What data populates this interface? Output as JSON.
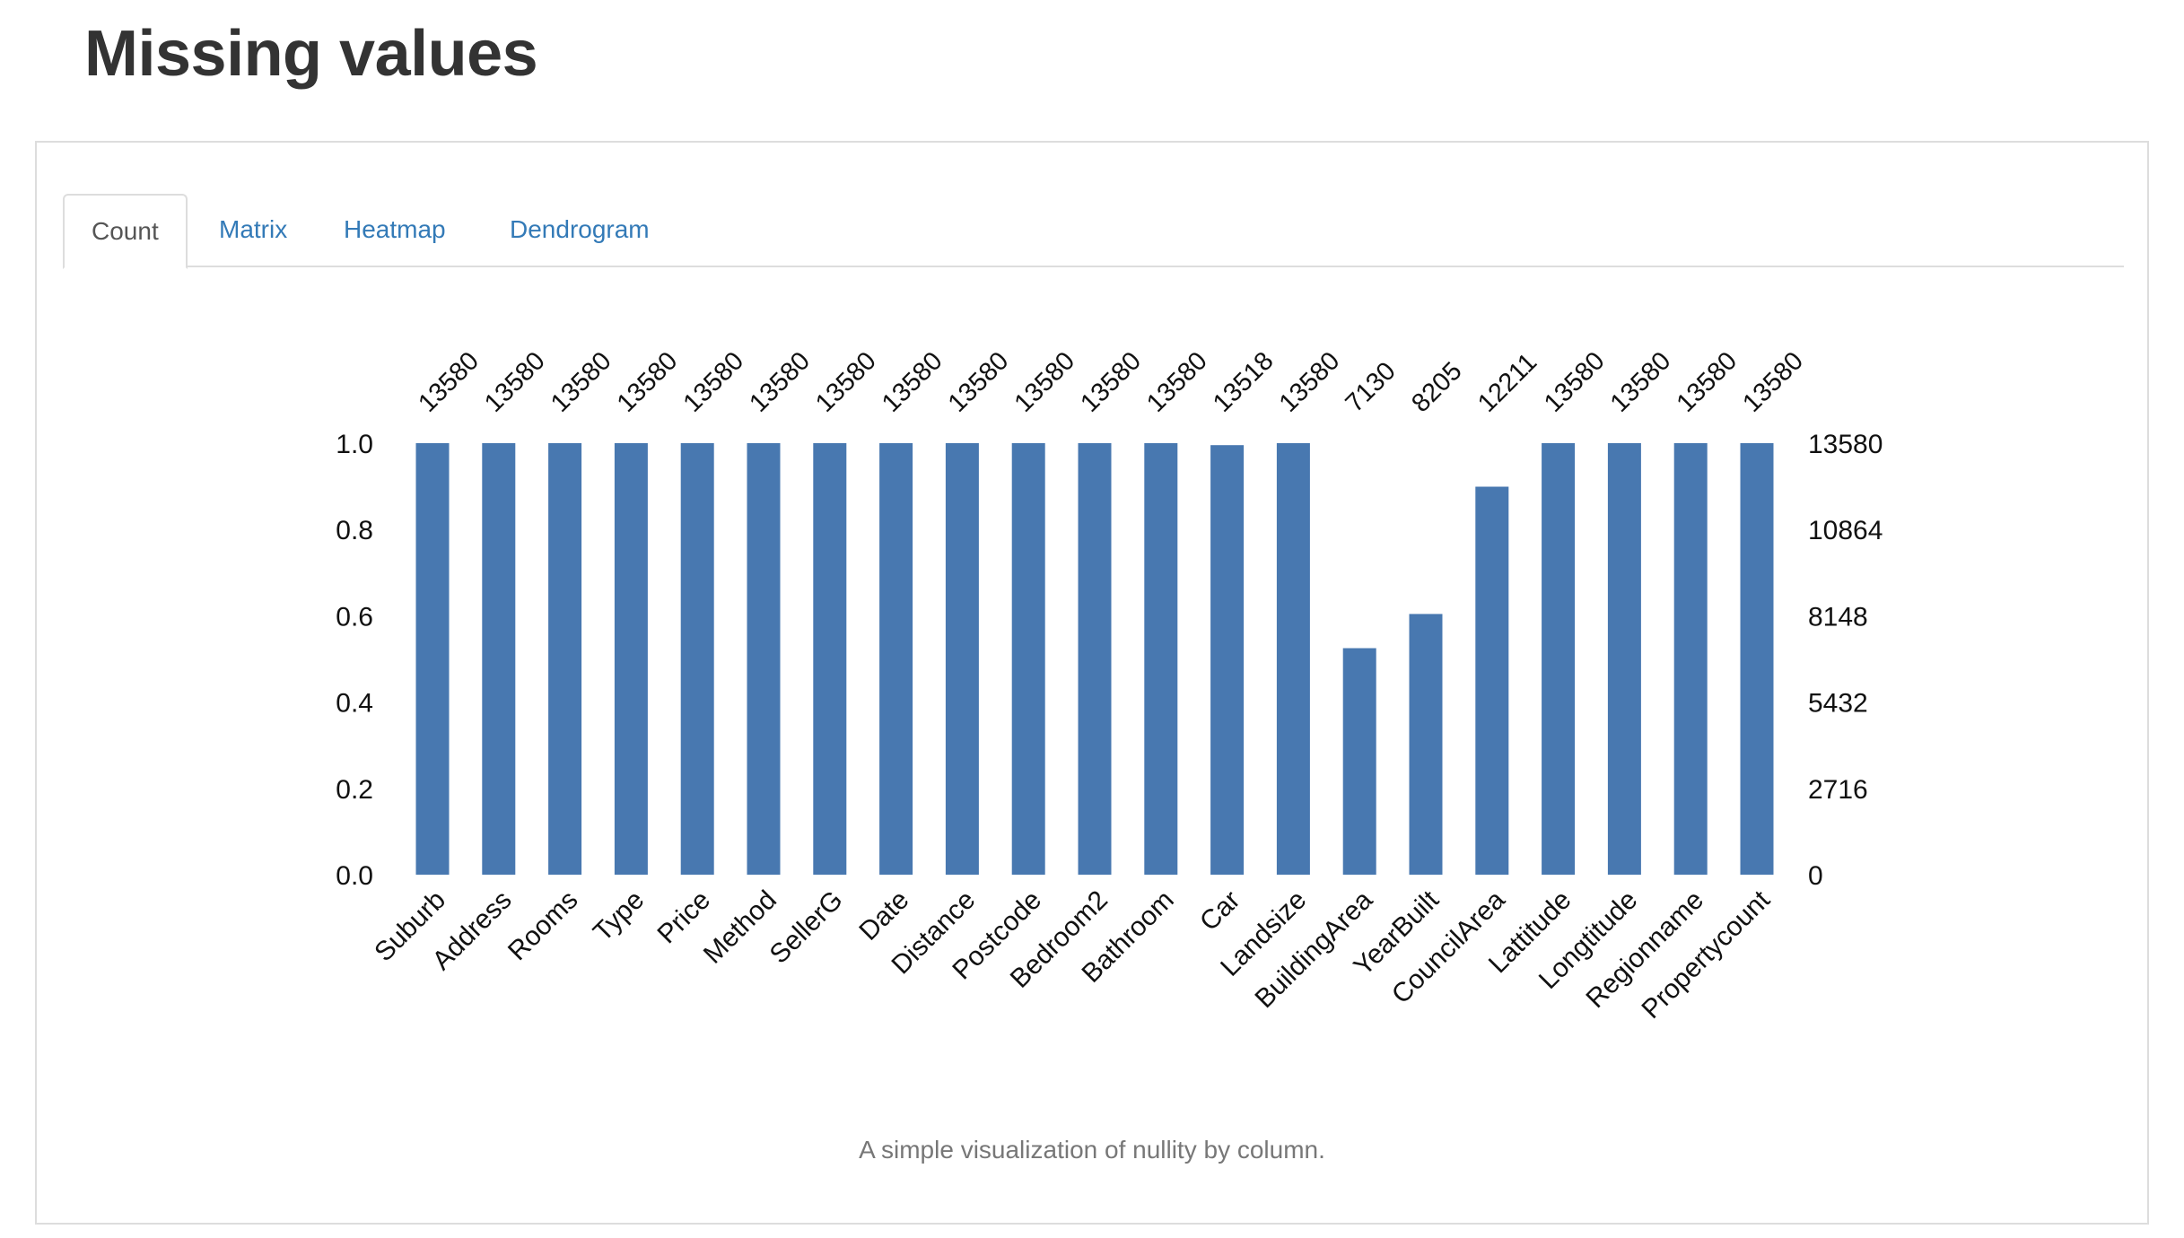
{
  "page": {
    "title": "Missing values"
  },
  "tabs": [
    {
      "label": "Count",
      "active": true
    },
    {
      "label": "Matrix",
      "active": false
    },
    {
      "label": "Heatmap",
      "active": false
    },
    {
      "label": "Dendrogram",
      "active": false
    }
  ],
  "caption": "A simple visualization of nullity by column.",
  "colors": {
    "bar": "#4878b0",
    "link": "#337ab7"
  },
  "chart_data": {
    "type": "bar",
    "categories": [
      "Suburb",
      "Address",
      "Rooms",
      "Type",
      "Price",
      "Method",
      "SellerG",
      "Date",
      "Distance",
      "Postcode",
      "Bedroom2",
      "Bathroom",
      "Car",
      "Landsize",
      "BuildingArea",
      "YearBuilt",
      "CouncilArea",
      "Lattitude",
      "Longtitude",
      "Regionname",
      "Propertycount"
    ],
    "values": [
      13580,
      13580,
      13580,
      13580,
      13580,
      13580,
      13580,
      13580,
      13580,
      13580,
      13580,
      13580,
      13518,
      13580,
      7130,
      8205,
      12211,
      13580,
      13580,
      13580,
      13580
    ],
    "data_labels": [
      "13580",
      "13580",
      "13580",
      "13580",
      "13580",
      "13580",
      "13580",
      "13580",
      "13580",
      "13580",
      "13580",
      "13580",
      "13518",
      "13580",
      "7130",
      "8205",
      "12211",
      "13580",
      "13580",
      "13580",
      "13580"
    ],
    "total": 13580,
    "left_axis": {
      "range": [
        0,
        1
      ],
      "ticks": [
        "0.0",
        "0.2",
        "0.4",
        "0.6",
        "0.8",
        "1.0"
      ]
    },
    "right_axis": {
      "range": [
        0,
        13580
      ],
      "ticks": [
        "0",
        "2716",
        "5432",
        "8148",
        "10864",
        "13580"
      ]
    },
    "grid": false,
    "legend": "none"
  }
}
